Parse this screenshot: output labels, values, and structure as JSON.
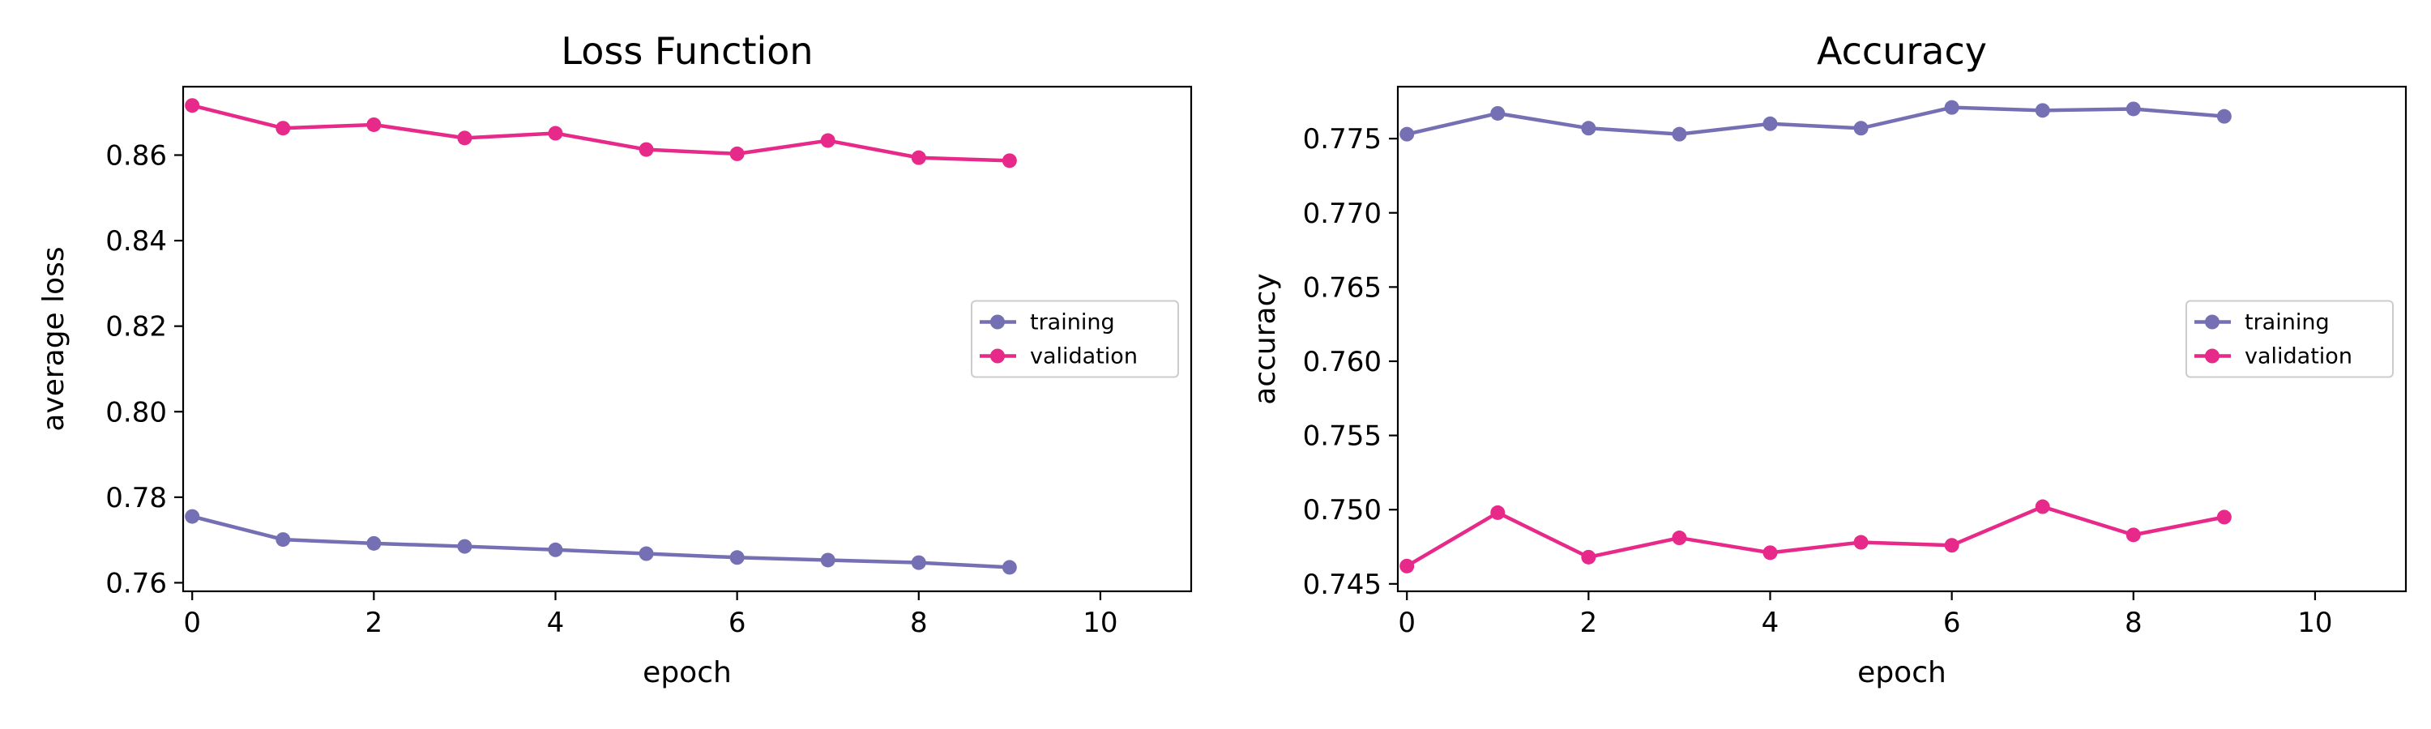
{
  "colors": {
    "training": "#7570b3",
    "validation": "#e7298a"
  },
  "chart_data": [
    {
      "type": "line",
      "title": "Loss Function",
      "xlabel": "epoch",
      "ylabel": "average loss",
      "xlim": [
        -0.1,
        11
      ],
      "ylim": [
        0.758,
        0.876
      ],
      "xticks": [
        0,
        2,
        4,
        6,
        8,
        10
      ],
      "xtick_labels": [
        "0",
        "2",
        "4",
        "6",
        "8",
        "10"
      ],
      "yticks": [
        0.76,
        0.78,
        0.8,
        0.82,
        0.84,
        0.86
      ],
      "ytick_labels": [
        "0.76",
        "0.78",
        "0.80",
        "0.82",
        "0.84",
        "0.86"
      ],
      "legend_position": "center-right",
      "grid": false,
      "x": [
        0,
        1,
        2,
        3,
        4,
        5,
        6,
        7,
        8,
        9
      ],
      "series": [
        {
          "name": "training",
          "color": "#7570b3",
          "values": [
            0.7755,
            0.7701,
            0.7692,
            0.7685,
            0.7677,
            0.7668,
            0.7659,
            0.7653,
            0.7647,
            0.7636
          ]
        },
        {
          "name": "validation",
          "color": "#e7298a",
          "values": [
            0.8716,
            0.8663,
            0.8671,
            0.864,
            0.8651,
            0.8613,
            0.8603,
            0.8634,
            0.8594,
            0.8587
          ]
        }
      ]
    },
    {
      "type": "line",
      "title": "Accuracy",
      "xlabel": "epoch",
      "ylabel": "accuracy",
      "xlim": [
        -0.1,
        11
      ],
      "ylim": [
        0.7445,
        0.7785
      ],
      "xticks": [
        0,
        2,
        4,
        6,
        8,
        10
      ],
      "xtick_labels": [
        "0",
        "2",
        "4",
        "6",
        "8",
        "10"
      ],
      "yticks": [
        0.745,
        0.75,
        0.755,
        0.76,
        0.765,
        0.77,
        0.775
      ],
      "ytick_labels": [
        "0.745",
        "0.750",
        "0.755",
        "0.760",
        "0.765",
        "0.770",
        "0.775"
      ],
      "legend_position": "center-right",
      "grid": false,
      "x": [
        0,
        1,
        2,
        3,
        4,
        5,
        6,
        7,
        8,
        9
      ],
      "series": [
        {
          "name": "training",
          "color": "#7570b3",
          "values": [
            0.7753,
            0.7767,
            0.7757,
            0.7753,
            0.776,
            0.7757,
            0.7771,
            0.7769,
            0.777,
            0.7765
          ]
        },
        {
          "name": "validation",
          "color": "#e7298a",
          "values": [
            0.7462,
            0.7498,
            0.7468,
            0.7481,
            0.7471,
            0.7478,
            0.7476,
            0.7502,
            0.7483,
            0.7495
          ]
        }
      ]
    }
  ]
}
